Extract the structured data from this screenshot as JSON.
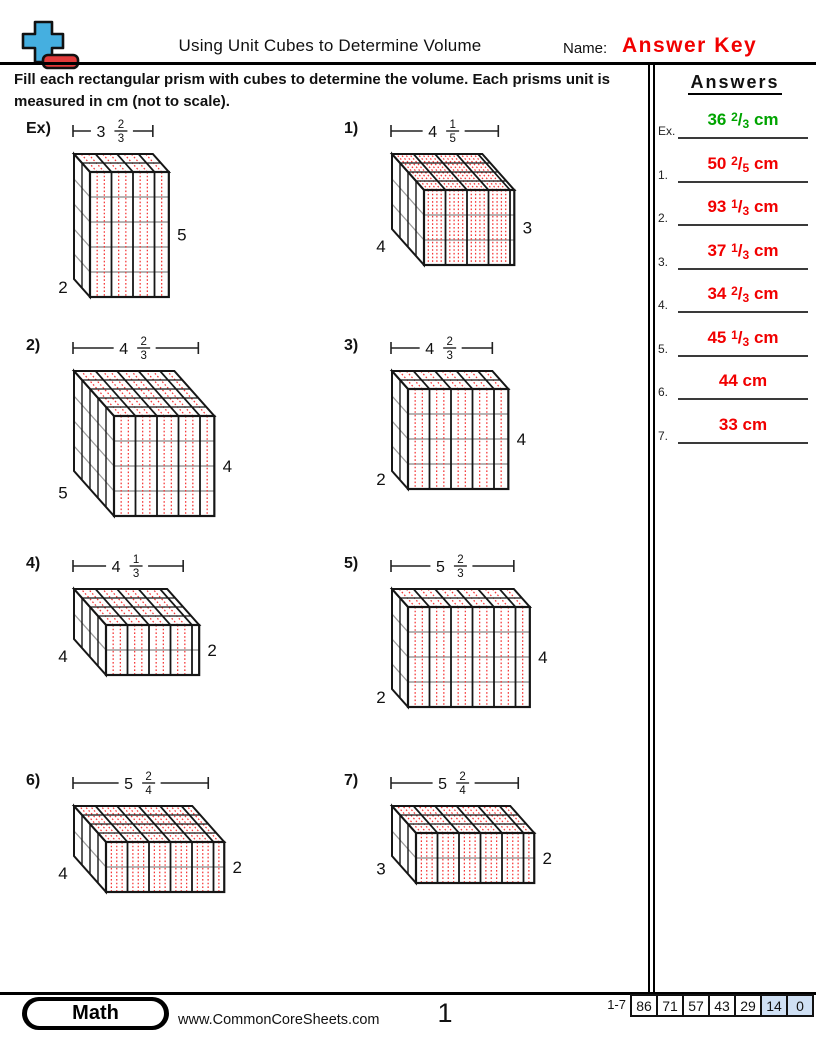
{
  "header": {
    "title": "Using Unit Cubes to Determine Volume",
    "name_label": "Name:",
    "answer_key": "Answer Key",
    "answer_key_color": "#f10000",
    "instructions": "Fill each rectangular prism with cubes to determine the volume. Each prisms unit is measured in cm (not to scale)."
  },
  "logo": {
    "name": "plus-minus-math-logo",
    "plus_color": "#45afe0",
    "minus_color": "#e23b3b"
  },
  "answers_panel": {
    "title": "Answers",
    "items": [
      {
        "label": "Ex.",
        "whole": "36",
        "num": "2",
        "den": "3",
        "unit": "cm",
        "color": "#00a400"
      },
      {
        "label": "1.",
        "whole": "50",
        "num": "2",
        "den": "5",
        "unit": "cm",
        "color": "#f10000"
      },
      {
        "label": "2.",
        "whole": "93",
        "num": "1",
        "den": "3",
        "unit": "cm",
        "color": "#f10000"
      },
      {
        "label": "3.",
        "whole": "37",
        "num": "1",
        "den": "3",
        "unit": "cm",
        "color": "#f10000"
      },
      {
        "label": "4.",
        "whole": "34",
        "num": "2",
        "den": "3",
        "unit": "cm",
        "color": "#f10000"
      },
      {
        "label": "5.",
        "whole": "45",
        "num": "1",
        "den": "3",
        "unit": "cm",
        "color": "#f10000"
      },
      {
        "label": "6.",
        "whole": "44",
        "num": null,
        "den": null,
        "unit": "cm",
        "color": "#f10000"
      },
      {
        "label": "7.",
        "whole": "33",
        "num": null,
        "den": null,
        "unit": "cm",
        "color": "#f10000"
      }
    ]
  },
  "problems": [
    {
      "label": "Ex)",
      "width_whole": 3,
      "width_num": 2,
      "width_den": 3,
      "height": 5,
      "depth": 2
    },
    {
      "label": "1)",
      "width_whole": 4,
      "width_num": 1,
      "width_den": 5,
      "height": 3,
      "depth": 4
    },
    {
      "label": "2)",
      "width_whole": 4,
      "width_num": 2,
      "width_den": 3,
      "height": 4,
      "depth": 5
    },
    {
      "label": "3)",
      "width_whole": 4,
      "width_num": 2,
      "width_den": 3,
      "height": 4,
      "depth": 2
    },
    {
      "label": "4)",
      "width_whole": 4,
      "width_num": 1,
      "width_den": 3,
      "height": 2,
      "depth": 4
    },
    {
      "label": "5)",
      "width_whole": 5,
      "width_num": 2,
      "width_den": 3,
      "height": 4,
      "depth": 2
    },
    {
      "label": "6)",
      "width_whole": 5,
      "width_num": 2,
      "width_den": 4,
      "height": 2,
      "depth": 4
    },
    {
      "label": "7)",
      "width_whole": 5,
      "width_num": 2,
      "width_den": 4,
      "height": 2,
      "depth": 3
    }
  ],
  "figure_style": {
    "line_color": "#161616",
    "grid_gray": "#9b9b9b",
    "fraction_red": "#f53535"
  },
  "footer": {
    "badge": "Math",
    "url": "www.CommonCoreSheets.com",
    "page": "1",
    "range_label": "1-7",
    "scores": [
      "86",
      "71",
      "57",
      "43",
      "29",
      "14",
      "0"
    ],
    "highlighted_scores_from_index": 5,
    "highlight_color": "#cfe0f4"
  }
}
